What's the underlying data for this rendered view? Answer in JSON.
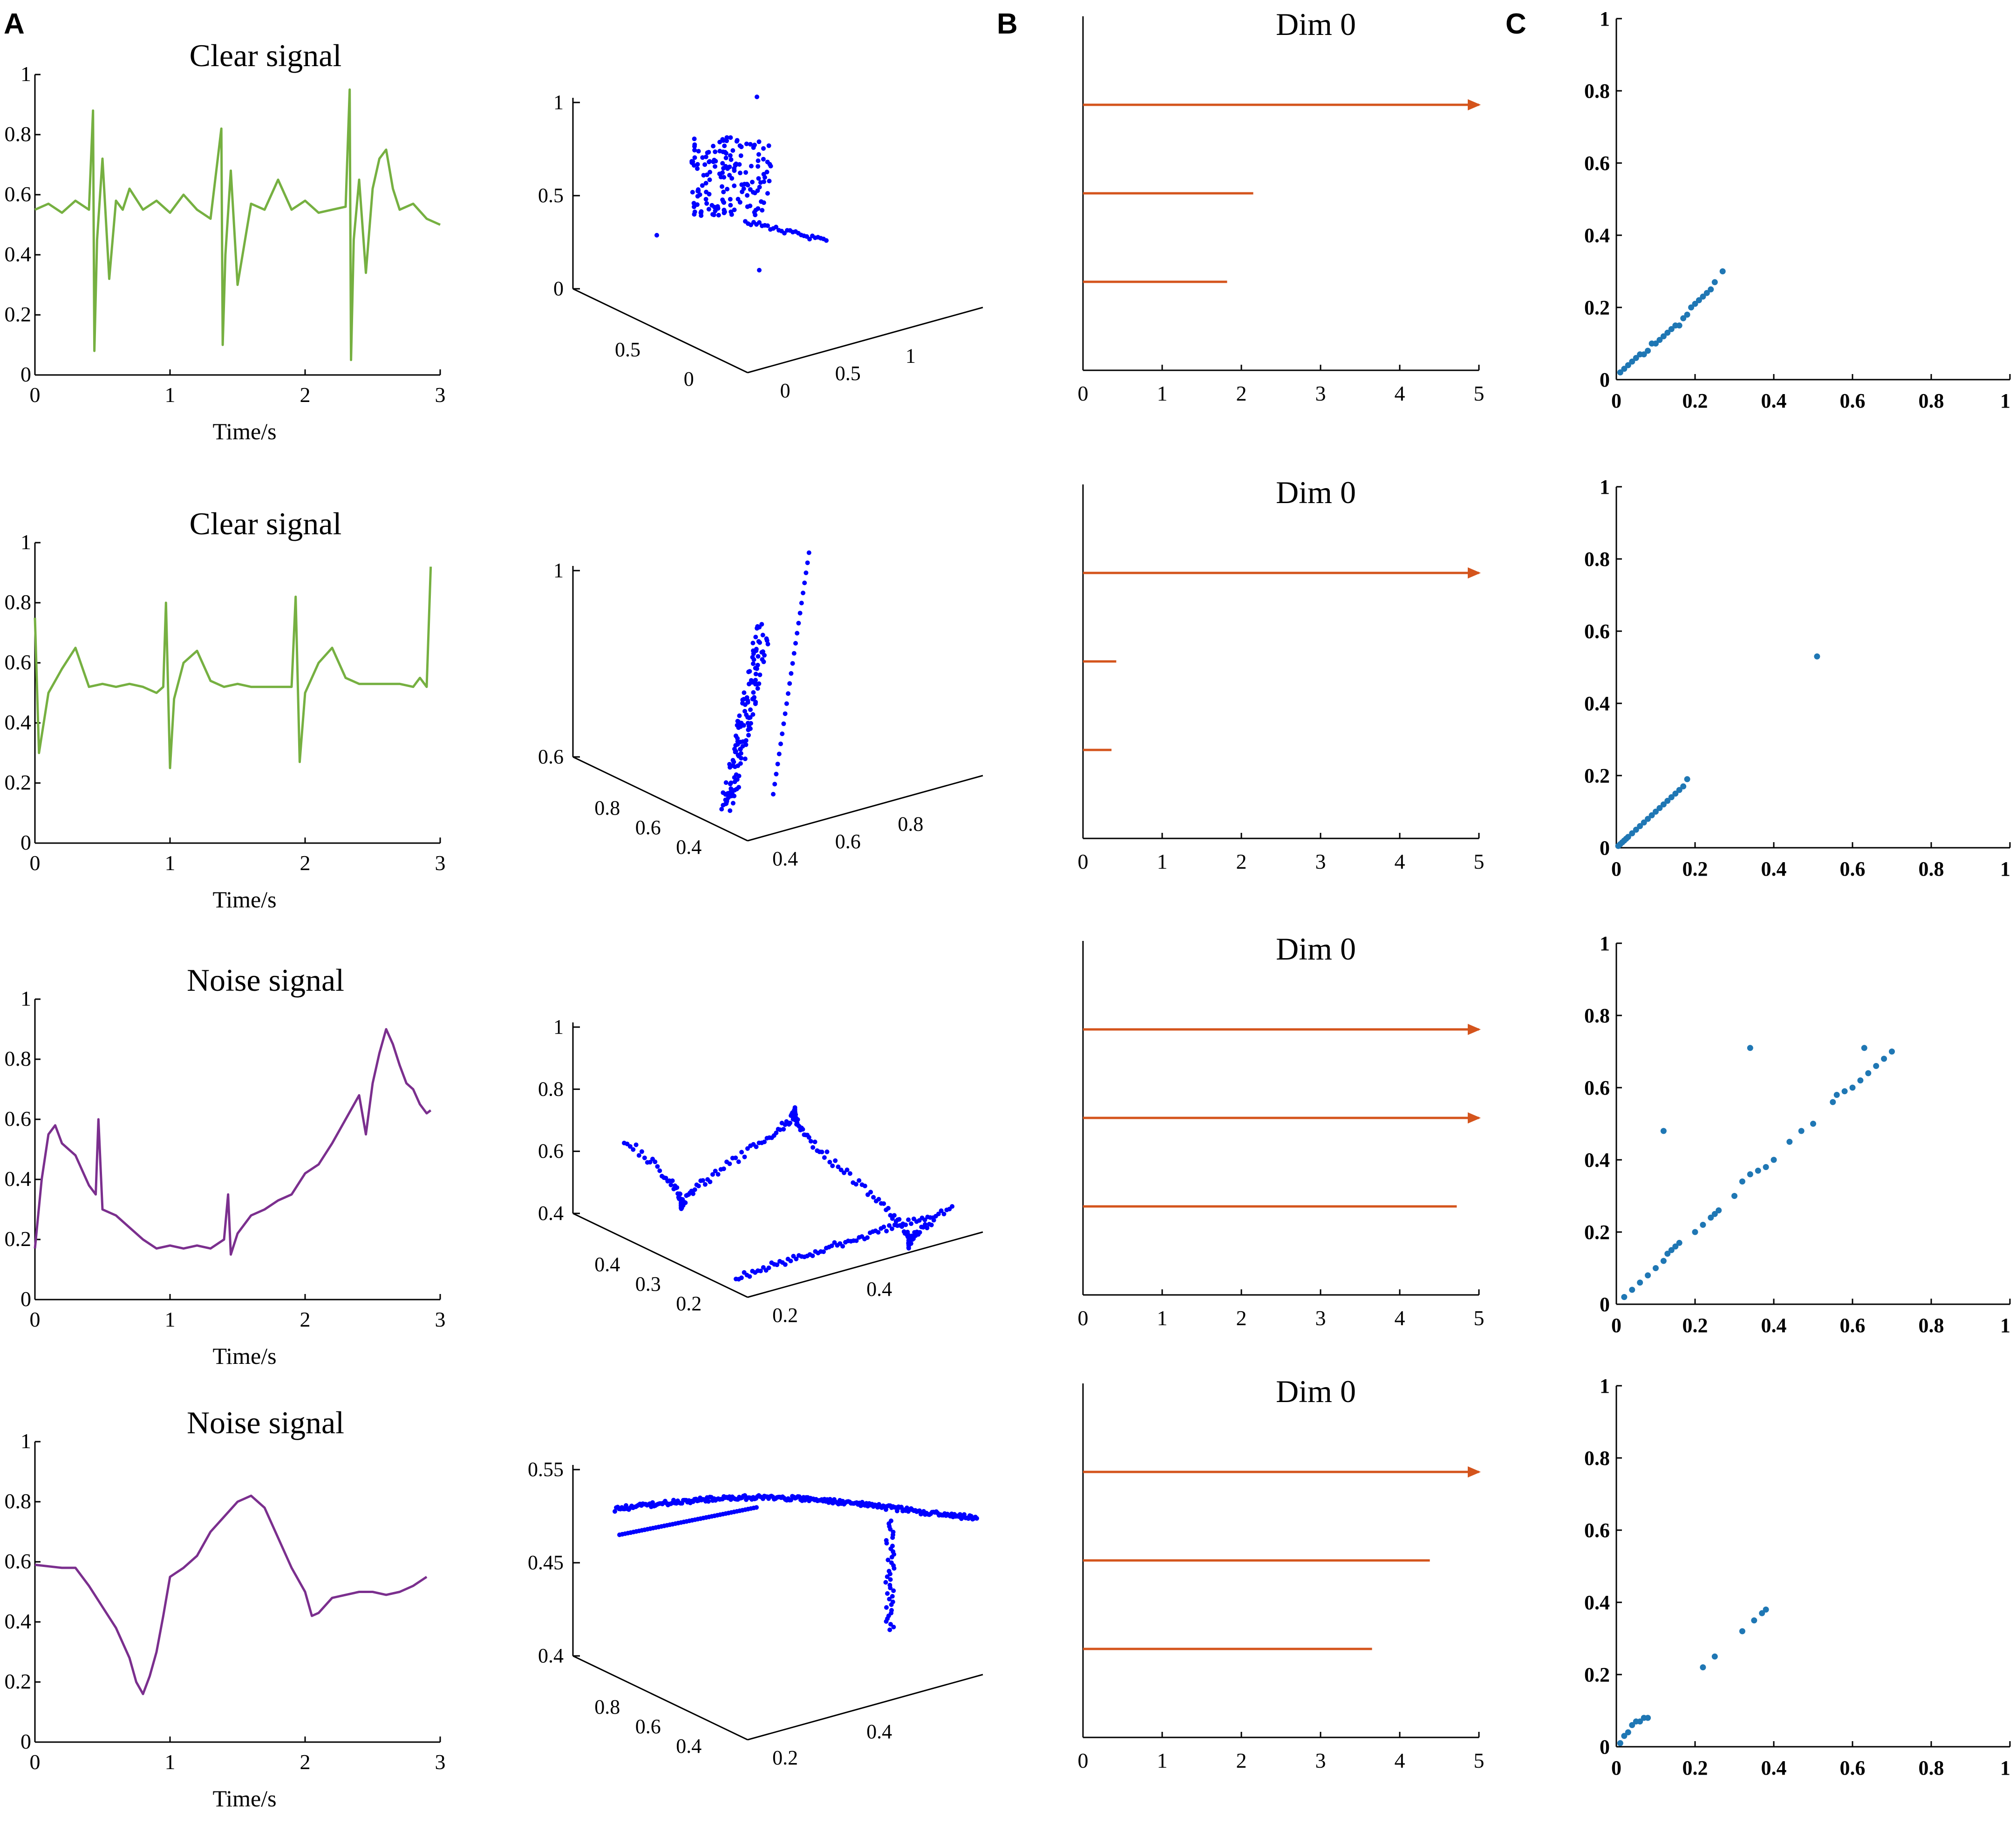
{
  "figure": {
    "panel_letters": [
      "A",
      "B",
      "C"
    ]
  },
  "colors": {
    "clear": "#76b041",
    "noise": "#7b2f8e",
    "cloud": "#0000ff",
    "bar": "#d4541c",
    "diag": "#1f77b4",
    "axis": "#000000"
  },
  "chart_data": [
    {
      "row": 0,
      "type": "line",
      "title": "Clear signal",
      "xlabel": "Time/s",
      "xlim": [
        0,
        3
      ],
      "ylim": [
        0,
        1
      ],
      "xticks": [
        "0",
        "1",
        "2",
        "3"
      ],
      "yticks": [
        "0",
        "0.2",
        "0.4",
        "0.6",
        "0.8",
        "1"
      ],
      "x": [
        0,
        0.1,
        0.2,
        0.3,
        0.4,
        0.43,
        0.44,
        0.46,
        0.5,
        0.55,
        0.6,
        0.65,
        0.7,
        0.8,
        0.9,
        1.0,
        1.1,
        1.2,
        1.3,
        1.38,
        1.39,
        1.41,
        1.45,
        1.5,
        1.6,
        1.7,
        1.8,
        1.9,
        2.0,
        2.1,
        2.2,
        2.3,
        2.33,
        2.34,
        2.36,
        2.4,
        2.45,
        2.5,
        2.55,
        2.6,
        2.65,
        2.7,
        2.8,
        2.9,
        3.0
      ],
      "y": [
        0.55,
        0.57,
        0.54,
        0.58,
        0.55,
        0.88,
        0.08,
        0.45,
        0.72,
        0.32,
        0.58,
        0.55,
        0.62,
        0.55,
        0.58,
        0.54,
        0.6,
        0.55,
        0.52,
        0.82,
        0.1,
        0.4,
        0.68,
        0.3,
        0.57,
        0.55,
        0.65,
        0.55,
        0.58,
        0.54,
        0.55,
        0.56,
        0.95,
        0.05,
        0.45,
        0.65,
        0.34,
        0.62,
        0.72,
        0.75,
        0.62,
        0.55,
        0.57,
        0.52,
        0.5
      ]
    },
    {
      "row": 1,
      "type": "line",
      "title": "Clear signal",
      "xlabel": "Time/s",
      "xlim": [
        0,
        3
      ],
      "ylim": [
        0,
        1
      ],
      "xticks": [
        "0",
        "1",
        "2",
        "3"
      ],
      "yticks": [
        "0",
        "0.2",
        "0.4",
        "0.6",
        "0.8",
        "1"
      ],
      "x": [
        0,
        0.03,
        0.1,
        0.2,
        0.3,
        0.4,
        0.5,
        0.6,
        0.7,
        0.8,
        0.9,
        0.95,
        0.97,
        1.0,
        1.03,
        1.1,
        1.2,
        1.3,
        1.4,
        1.5,
        1.6,
        1.7,
        1.8,
        1.9,
        1.93,
        1.96,
        2.0,
        2.1,
        2.2,
        2.3,
        2.4,
        2.5,
        2.6,
        2.7,
        2.8,
        2.85,
        2.9,
        2.93
      ],
      "y": [
        0.75,
        0.3,
        0.5,
        0.58,
        0.65,
        0.52,
        0.53,
        0.52,
        0.53,
        0.52,
        0.5,
        0.52,
        0.8,
        0.25,
        0.48,
        0.6,
        0.64,
        0.54,
        0.52,
        0.53,
        0.52,
        0.52,
        0.52,
        0.52,
        0.82,
        0.27,
        0.5,
        0.6,
        0.65,
        0.55,
        0.53,
        0.53,
        0.53,
        0.53,
        0.52,
        0.55,
        0.52,
        0.92
      ]
    },
    {
      "row": 2,
      "type": "line",
      "title": "Noise signal",
      "xlabel": "Time/s",
      "xlim": [
        0,
        3
      ],
      "ylim": [
        0,
        1
      ],
      "xticks": [
        "0",
        "1",
        "2",
        "3"
      ],
      "yticks": [
        "0",
        "0.2",
        "0.4",
        "0.6",
        "0.8",
        "1"
      ],
      "x": [
        0,
        0.05,
        0.1,
        0.15,
        0.2,
        0.3,
        0.4,
        0.45,
        0.47,
        0.5,
        0.6,
        0.7,
        0.8,
        0.9,
        1.0,
        1.1,
        1.2,
        1.3,
        1.4,
        1.43,
        1.45,
        1.5,
        1.6,
        1.7,
        1.8,
        1.9,
        2.0,
        2.1,
        2.2,
        2.3,
        2.4,
        2.45,
        2.5,
        2.55,
        2.6,
        2.65,
        2.7,
        2.75,
        2.8,
        2.85,
        2.9,
        2.93
      ],
      "y": [
        0.17,
        0.4,
        0.55,
        0.58,
        0.52,
        0.48,
        0.38,
        0.35,
        0.6,
        0.3,
        0.28,
        0.24,
        0.2,
        0.17,
        0.18,
        0.17,
        0.18,
        0.17,
        0.2,
        0.35,
        0.15,
        0.22,
        0.28,
        0.3,
        0.33,
        0.35,
        0.42,
        0.45,
        0.52,
        0.6,
        0.68,
        0.55,
        0.72,
        0.82,
        0.9,
        0.85,
        0.78,
        0.72,
        0.7,
        0.65,
        0.62,
        0.63
      ]
    },
    {
      "row": 3,
      "type": "line",
      "title": "Noise signal",
      "xlabel": "Time/s",
      "xlim": [
        0,
        3
      ],
      "ylim": [
        0,
        1
      ],
      "xticks": [
        "0",
        "1",
        "2",
        "3"
      ],
      "yticks": [
        "0",
        "0.2",
        "0.4",
        "0.6",
        "0.8",
        "1"
      ],
      "x": [
        0,
        0.2,
        0.3,
        0.4,
        0.5,
        0.6,
        0.7,
        0.75,
        0.8,
        0.85,
        0.9,
        0.95,
        1.0,
        1.1,
        1.2,
        1.3,
        1.4,
        1.5,
        1.6,
        1.7,
        1.8,
        1.9,
        2.0,
        2.05,
        2.1,
        2.2,
        2.3,
        2.4,
        2.5,
        2.6,
        2.7,
        2.8,
        2.9
      ],
      "y": [
        0.59,
        0.58,
        0.58,
        0.52,
        0.45,
        0.38,
        0.28,
        0.2,
        0.16,
        0.22,
        0.3,
        0.42,
        0.55,
        0.58,
        0.62,
        0.7,
        0.75,
        0.8,
        0.82,
        0.78,
        0.68,
        0.58,
        0.5,
        0.42,
        0.43,
        0.48,
        0.49,
        0.5,
        0.5,
        0.49,
        0.5,
        0.52,
        0.55
      ]
    },
    {
      "row": 0,
      "type": "scatter3d",
      "z_ticks": [
        "0",
        "0.5",
        "1"
      ],
      "x_ticks": [
        "0",
        "0.5",
        "1"
      ],
      "y_ticks": [
        "0",
        "0.5"
      ]
    },
    {
      "row": 1,
      "type": "scatter3d",
      "z_ticks": [
        "0.6",
        "1"
      ],
      "x_ticks": [
        "0.4",
        "0.6",
        "0.8"
      ],
      "y_ticks": [
        "0.4",
        "0.6",
        "0.8"
      ]
    },
    {
      "row": 2,
      "type": "scatter3d",
      "z_ticks": [
        "0.4",
        "0.6",
        "0.8",
        "1"
      ],
      "x_ticks": [
        "0.2",
        "0.4"
      ],
      "y_ticks": [
        "0.2",
        "0.3",
        "0.4"
      ]
    },
    {
      "row": 3,
      "type": "scatter3d",
      "z_ticks": [
        "0.4",
        "0.45",
        "0.55"
      ],
      "x_ticks": [
        "0.2",
        "0.4"
      ],
      "y_ticks": [
        "0.4",
        "0.6",
        "0.8"
      ]
    },
    {
      "row": 0,
      "type": "barcode",
      "title": "Dim 0",
      "xlim": [
        0,
        5
      ],
      "xticks": [
        "0",
        "1",
        "2",
        "3",
        "4",
        "5"
      ],
      "bars": [
        {
          "end": 5,
          "infinite": true
        },
        {
          "end": 2.15
        },
        {
          "end": 1.82
        }
      ]
    },
    {
      "row": 1,
      "type": "barcode",
      "title": "Dim 0",
      "xlim": [
        0,
        5
      ],
      "xticks": [
        "0",
        "1",
        "2",
        "3",
        "4",
        "5"
      ],
      "bars": [
        {
          "end": 5,
          "infinite": true
        },
        {
          "end": 0.42
        },
        {
          "end": 0.36
        }
      ]
    },
    {
      "row": 2,
      "type": "barcode",
      "title": "Dim 0",
      "xlim": [
        0,
        5
      ],
      "xticks": [
        "0",
        "1",
        "2",
        "3",
        "4",
        "5"
      ],
      "bars": [
        {
          "end": 5,
          "infinite": true
        },
        {
          "end": 5,
          "infinite": true
        },
        {
          "end": 4.72
        }
      ]
    },
    {
      "row": 3,
      "type": "barcode",
      "title": "Dim 0",
      "xlim": [
        0,
        5
      ],
      "xticks": [
        "0",
        "1",
        "2",
        "3",
        "4",
        "5"
      ],
      "bars": [
        {
          "end": 5,
          "infinite": true
        },
        {
          "end": 4.38
        },
        {
          "end": 3.65
        }
      ]
    },
    {
      "row": 0,
      "type": "scatter",
      "xlim": [
        0,
        1
      ],
      "ylim": [
        0,
        1
      ],
      "xticks": [
        "0",
        "0.2",
        "0.4",
        "0.6",
        "0.8",
        "1"
      ],
      "yticks": [
        "0",
        "0.2",
        "0.4",
        "0.6",
        "0.8",
        "1"
      ],
      "x": [
        0.01,
        0.02,
        0.03,
        0.04,
        0.05,
        0.06,
        0.07,
        0.08,
        0.09,
        0.1,
        0.11,
        0.12,
        0.13,
        0.14,
        0.15,
        0.16,
        0.17,
        0.18,
        0.19,
        0.2,
        0.21,
        0.22,
        0.23,
        0.24,
        0.25,
        0.27
      ],
      "y": [
        0.02,
        0.03,
        0.04,
        0.05,
        0.06,
        0.07,
        0.07,
        0.08,
        0.1,
        0.1,
        0.11,
        0.12,
        0.13,
        0.14,
        0.15,
        0.15,
        0.17,
        0.18,
        0.2,
        0.21,
        0.22,
        0.23,
        0.24,
        0.25,
        0.27,
        0.3
      ]
    },
    {
      "row": 1,
      "type": "scatter",
      "xlim": [
        0,
        1
      ],
      "ylim": [
        0,
        1
      ],
      "xticks": [
        "0",
        "0.2",
        "0.4",
        "0.6",
        "0.8",
        "1"
      ],
      "yticks": [
        "0",
        "0.2",
        "0.4",
        "0.6",
        "0.8",
        "1"
      ],
      "x": [
        0.005,
        0.01,
        0.015,
        0.02,
        0.025,
        0.03,
        0.04,
        0.05,
        0.06,
        0.07,
        0.08,
        0.09,
        0.1,
        0.11,
        0.12,
        0.13,
        0.14,
        0.15,
        0.16,
        0.17,
        0.18,
        0.51
      ],
      "y": [
        0.005,
        0.01,
        0.015,
        0.02,
        0.025,
        0.03,
        0.04,
        0.05,
        0.06,
        0.07,
        0.08,
        0.09,
        0.1,
        0.11,
        0.12,
        0.13,
        0.14,
        0.15,
        0.16,
        0.17,
        0.19,
        0.53
      ]
    },
    {
      "row": 2,
      "type": "scatter",
      "xlim": [
        0,
        1
      ],
      "ylim": [
        0,
        1
      ],
      "xticks": [
        "0",
        "0.2",
        "0.4",
        "0.6",
        "0.8",
        "1"
      ],
      "yticks": [
        "0",
        "0.2",
        "0.4",
        "0.6",
        "0.8",
        "1"
      ],
      "x": [
        0.02,
        0.04,
        0.06,
        0.08,
        0.1,
        0.12,
        0.13,
        0.14,
        0.15,
        0.16,
        0.2,
        0.22,
        0.24,
        0.25,
        0.26,
        0.3,
        0.32,
        0.34,
        0.36,
        0.38,
        0.4,
        0.44,
        0.47,
        0.5,
        0.55,
        0.56,
        0.58,
        0.6,
        0.62,
        0.64,
        0.66,
        0.68,
        0.7,
        0.12,
        0.34,
        0.63
      ],
      "y": [
        0.02,
        0.04,
        0.06,
        0.08,
        0.1,
        0.12,
        0.14,
        0.15,
        0.16,
        0.17,
        0.2,
        0.22,
        0.24,
        0.25,
        0.26,
        0.3,
        0.34,
        0.36,
        0.37,
        0.38,
        0.4,
        0.45,
        0.48,
        0.5,
        0.56,
        0.58,
        0.59,
        0.6,
        0.62,
        0.64,
        0.66,
        0.68,
        0.7,
        0.48,
        0.71,
        0.71
      ]
    },
    {
      "row": 3,
      "type": "scatter",
      "xlim": [
        0,
        1
      ],
      "ylim": [
        0,
        1
      ],
      "xticks": [
        "0",
        "0.2",
        "0.4",
        "0.6",
        "0.8",
        "1"
      ],
      "yticks": [
        "0",
        "0.2",
        "0.4",
        "0.6",
        "0.8",
        "1"
      ],
      "x": [
        0.01,
        0.02,
        0.03,
        0.04,
        0.05,
        0.06,
        0.07,
        0.08,
        0.22,
        0.25,
        0.32,
        0.35,
        0.37,
        0.38
      ],
      "y": [
        0.01,
        0.03,
        0.04,
        0.06,
        0.07,
        0.07,
        0.08,
        0.08,
        0.22,
        0.25,
        0.32,
        0.35,
        0.37,
        0.38
      ]
    }
  ]
}
